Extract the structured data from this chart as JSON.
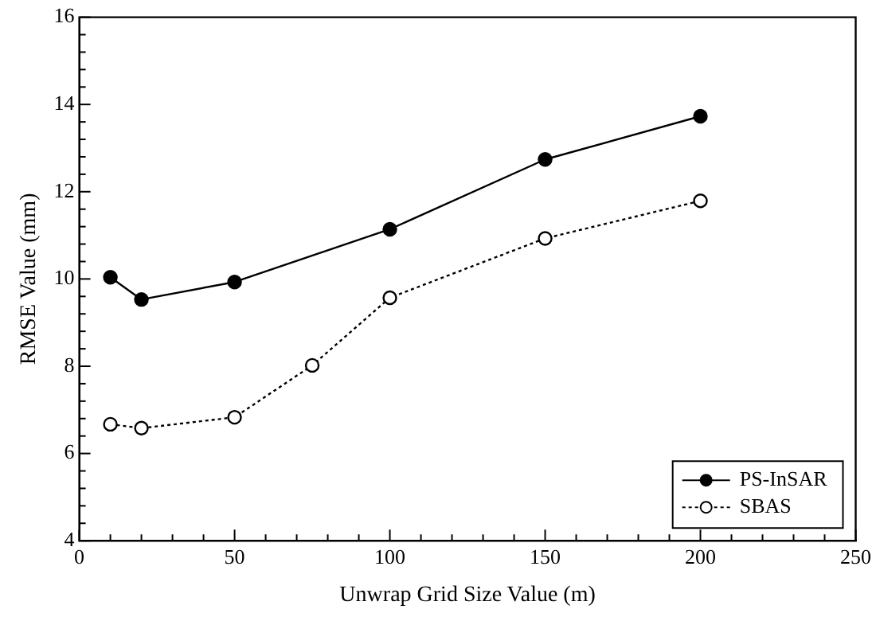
{
  "chart_data": {
    "type": "line",
    "xlabel": "Unwrap Grid Size Value (m)",
    "ylabel": "RMSE Value (mm)",
    "xlim": [
      0,
      250
    ],
    "ylim": [
      4,
      16
    ],
    "xticks": [
      0,
      {
        "value": 10,
        "label": null
      },
      {
        "value": 20,
        "label": null
      },
      {
        "value": 30,
        "label": null
      },
      {
        "value": 40,
        "label": null
      },
      50,
      {
        "value": 60,
        "label": null
      },
      {
        "value": 70,
        "label": null
      },
      {
        "value": 80,
        "label": null
      },
      {
        "value": 90,
        "label": null
      },
      100,
      {
        "value": 110,
        "label": null
      },
      {
        "value": 120,
        "label": null
      },
      {
        "value": 130,
        "label": null
      },
      {
        "value": 140,
        "label": null
      },
      150,
      {
        "value": 160,
        "label": null
      },
      {
        "value": 170,
        "label": null
      },
      {
        "value": 180,
        "label": null
      },
      {
        "value": 190,
        "label": null
      },
      200,
      {
        "value": 210,
        "label": null
      },
      {
        "value": 220,
        "label": null
      },
      {
        "value": 230,
        "label": null
      },
      {
        "value": 240,
        "label": null
      },
      250
    ],
    "yticks": [
      4,
      {
        "value": 4.4,
        "label": null
      },
      {
        "value": 4.8,
        "label": null
      },
      {
        "value": 5.2,
        "label": null
      },
      {
        "value": 5.6,
        "label": null
      },
      6,
      {
        "value": 6.4,
        "label": null
      },
      {
        "value": 6.8,
        "label": null
      },
      {
        "value": 7.2,
        "label": null
      },
      {
        "value": 7.6,
        "label": null
      },
      8,
      {
        "value": 8.4,
        "label": null
      },
      {
        "value": 8.8,
        "label": null
      },
      {
        "value": 9.2,
        "label": null
      },
      {
        "value": 9.6,
        "label": null
      },
      10,
      {
        "value": 10.4,
        "label": null
      },
      {
        "value": 10.8,
        "label": null
      },
      {
        "value": 11.2,
        "label": null
      },
      {
        "value": 11.6,
        "label": null
      },
      12,
      {
        "value": 12.4,
        "label": null
      },
      {
        "value": 12.8,
        "label": null
      },
      {
        "value": 13.2,
        "label": null
      },
      {
        "value": 13.6,
        "label": null
      },
      14,
      {
        "value": 14.4,
        "label": null
      },
      {
        "value": 14.8,
        "label": null
      },
      {
        "value": 15.2,
        "label": null
      },
      {
        "value": 15.6,
        "label": null
      },
      16
    ],
    "grid": false,
    "legend": "bottom right",
    "marker": "circle",
    "series": [
      {
        "name": "PS-InSAR",
        "color": "#000000",
        "line_style": "solid",
        "x": [
          10,
          20,
          50,
          100,
          150,
          200
        ],
        "values": [
          10.04,
          9.53,
          9.93,
          11.14,
          12.74,
          13.73
        ]
      },
      {
        "name": "SBAS",
        "color": "#000000",
        "line_style": "dotted",
        "x": [
          10,
          20,
          50,
          75,
          100,
          150,
          200
        ],
        "values": [
          6.67,
          6.58,
          6.83,
          8.02,
          9.57,
          10.93,
          11.79
        ]
      }
    ]
  }
}
